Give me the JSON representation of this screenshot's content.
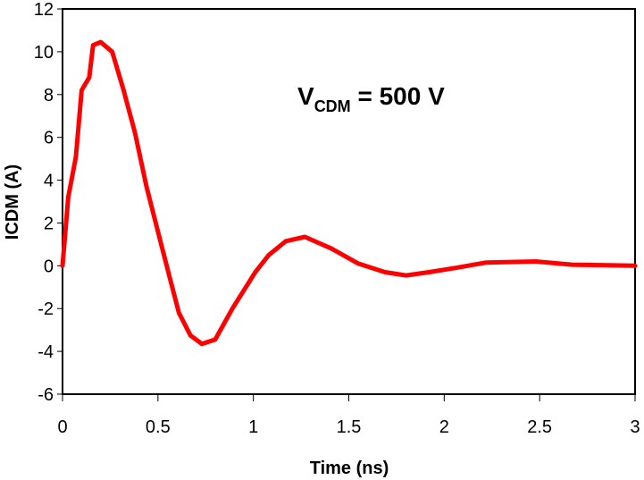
{
  "chart_data": {
    "type": "line",
    "title": "",
    "xlabel": "Time (ns)",
    "ylabel": "ICDM (A)",
    "xlim": [
      0,
      3
    ],
    "ylim": [
      -6,
      12
    ],
    "x_ticks": [
      "0",
      "0.5",
      "1",
      "1.5",
      "2",
      "2.5",
      "3"
    ],
    "y_ticks": [
      "12",
      "10",
      "8",
      "6",
      "4",
      "2",
      "0",
      "-2",
      "-4",
      "-6"
    ],
    "grid": false,
    "legend": null,
    "annotations": [
      {
        "text_main": "V",
        "text_sub": "CDM",
        "text_rest": " = 500 V"
      }
    ],
    "series": [
      {
        "name": "ICDM",
        "color": "#ff0000",
        "x": [
          0,
          0.03,
          0.07,
          0.1,
          0.14,
          0.16,
          0.2,
          0.26,
          0.32,
          0.38,
          0.44,
          0.5,
          0.56,
          0.61,
          0.67,
          0.73,
          0.8,
          0.89,
          1.01,
          1.08,
          1.17,
          1.27,
          1.41,
          1.55,
          1.69,
          1.8,
          1.92,
          2.06,
          2.22,
          2.48,
          2.67,
          3.0
        ],
        "y": [
          0,
          3.2,
          5.1,
          8.2,
          8.8,
          10.3,
          10.45,
          10.0,
          8.2,
          6.2,
          3.7,
          1.6,
          -0.5,
          -2.2,
          -3.25,
          -3.65,
          -3.45,
          -2.0,
          -0.3,
          0.5,
          1.15,
          1.35,
          0.8,
          0.1,
          -0.3,
          -0.45,
          -0.3,
          -0.1,
          0.15,
          0.2,
          0.05,
          0
        ]
      }
    ]
  }
}
